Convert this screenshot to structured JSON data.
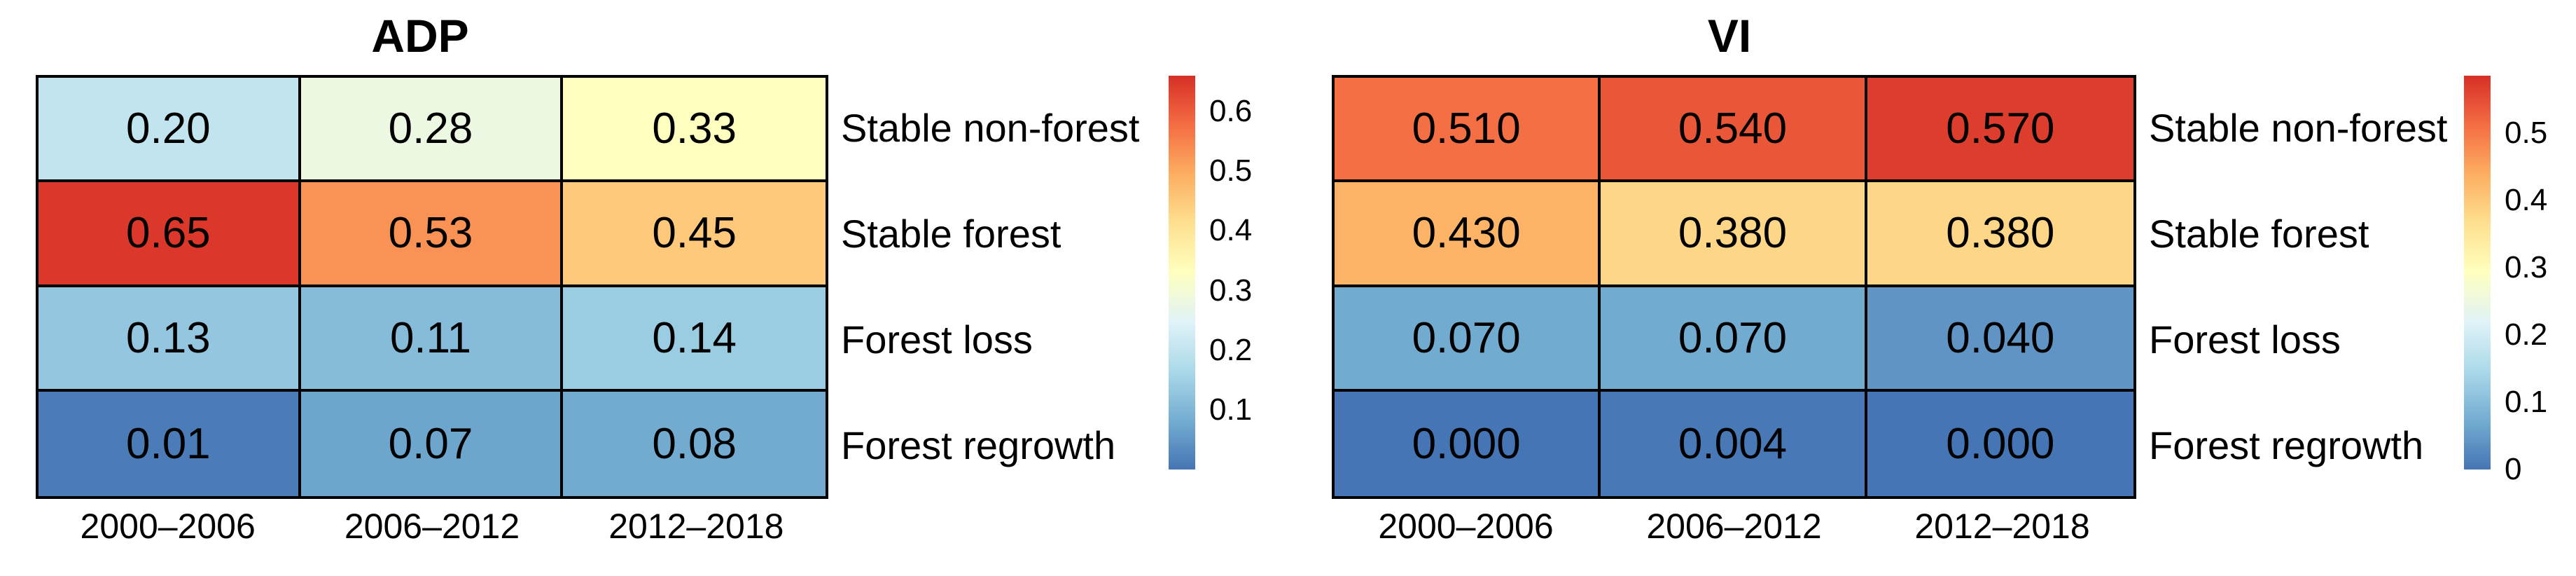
{
  "figure": {
    "background": "#ffffff",
    "text_color": "#000000",
    "grid_line_color": "#000000"
  },
  "chart_data": [
    {
      "type": "heatmap",
      "title": "ADP",
      "categories_x": [
        "2000–2006",
        "2006–2012",
        "2012–2018"
      ],
      "categories_y": [
        "Stable non-forest",
        "Stable forest",
        "Forest loss",
        "Forest regrowth"
      ],
      "values": [
        [
          0.2,
          0.28,
          0.33
        ],
        [
          0.65,
          0.53,
          0.45
        ],
        [
          0.13,
          0.11,
          0.14
        ],
        [
          0.01,
          0.07,
          0.08
        ]
      ],
      "cell_labels": [
        [
          "0.20",
          "0.28",
          "0.33"
        ],
        [
          "0.65",
          "0.53",
          "0.45"
        ],
        [
          "0.13",
          "0.11",
          "0.14"
        ],
        [
          "0.01",
          "0.07",
          "0.08"
        ]
      ],
      "color_scale": {
        "palette": [
          "#4575b4",
          "#74add1",
          "#abd9e9",
          "#e0f3f8",
          "#ffffbf",
          "#fee090",
          "#fdae61",
          "#f46d43",
          "#d73027"
        ],
        "vmin": 0,
        "vmax": 0.66,
        "tick_labels": [
          "0.6",
          "0.5",
          "0.4",
          "0.3",
          "0.2",
          "0.1"
        ],
        "tick_values": [
          0.6,
          0.5,
          0.4,
          0.3,
          0.2,
          0.1
        ],
        "legend_position": "right"
      },
      "grid": true
    },
    {
      "type": "heatmap",
      "title": "VI",
      "categories_x": [
        "2000–2006",
        "2006–2012",
        "2012–2018"
      ],
      "categories_y": [
        "Stable non-forest",
        "Stable forest",
        "Forest loss",
        "Forest regrowth"
      ],
      "values": [
        [
          0.51,
          0.54,
          0.57
        ],
        [
          0.43,
          0.38,
          0.38
        ],
        [
          0.07,
          0.07,
          0.04
        ],
        [
          0.0,
          0.004,
          0.0
        ]
      ],
      "cell_labels": [
        [
          "0.510",
          "0.540",
          "0.570"
        ],
        [
          "0.430",
          "0.380",
          "0.380"
        ],
        [
          "0.070",
          "0.070",
          "0.040"
        ],
        [
          "0.000",
          "0.004",
          "0.000"
        ]
      ],
      "color_scale": {
        "palette": [
          "#4575b4",
          "#74add1",
          "#abd9e9",
          "#e0f3f8",
          "#ffffbf",
          "#fee090",
          "#fdae61",
          "#f46d43",
          "#d73027"
        ],
        "vmin": 0,
        "vmax": 0.585,
        "tick_labels": [
          "0.5",
          "0.4",
          "0.3",
          "0.2",
          "0.1",
          "0"
        ],
        "tick_values": [
          0.5,
          0.4,
          0.3,
          0.2,
          0.1,
          0
        ],
        "legend_position": "right"
      },
      "grid": true
    }
  ]
}
